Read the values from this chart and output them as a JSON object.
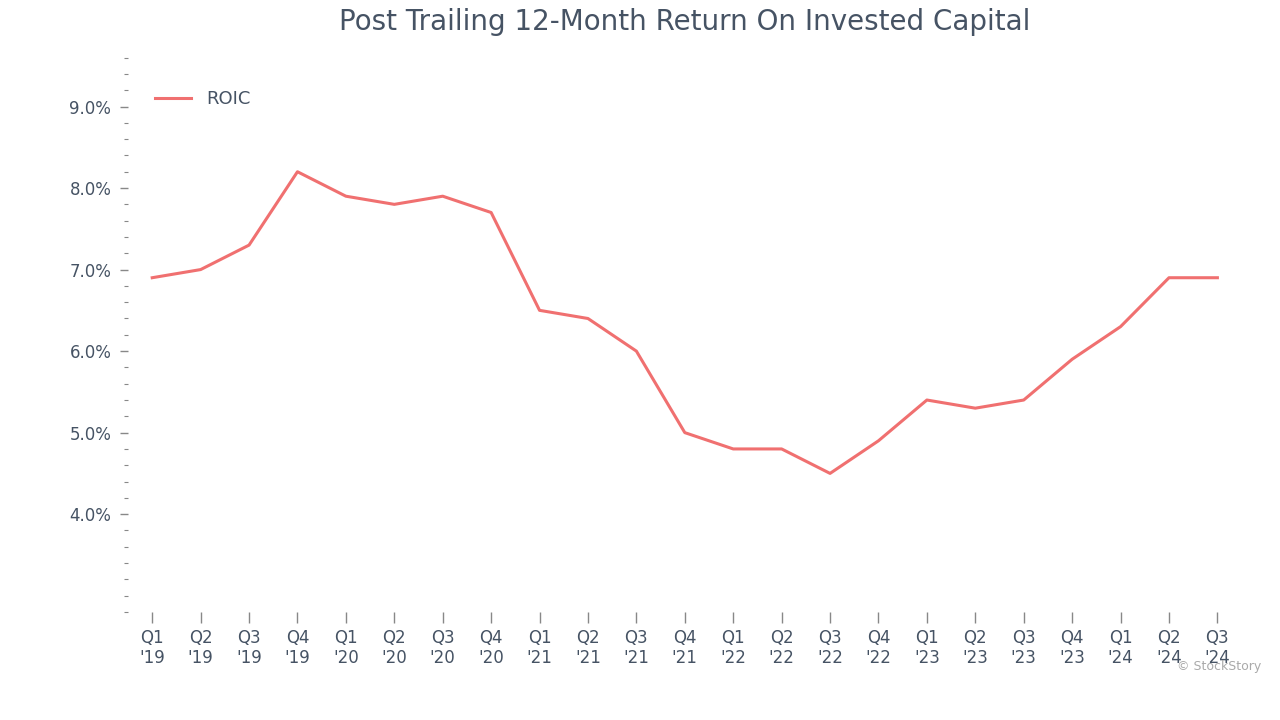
{
  "title": "Post Trailing 12-Month Return On Invested Capital",
  "line_color": "#F07070",
  "line_label": "ROIC",
  "background_color": "#FFFFFF",
  "text_color": "#465364",
  "watermark": "© StockStory",
  "x_labels": [
    "Q1\n'19",
    "Q2\n'19",
    "Q3\n'19",
    "Q4\n'19",
    "Q1\n'20",
    "Q2\n'20",
    "Q3\n'20",
    "Q4\n'20",
    "Q1\n'21",
    "Q2\n'21",
    "Q3\n'21",
    "Q4\n'21",
    "Q1\n'22",
    "Q2\n'22",
    "Q3\n'22",
    "Q4\n'22",
    "Q1\n'23",
    "Q2\n'23",
    "Q3\n'23",
    "Q4\n'23",
    "Q1\n'24",
    "Q2\n'24",
    "Q3\n'24"
  ],
  "y_values": [
    0.069,
    0.07,
    0.073,
    0.082,
    0.079,
    0.078,
    0.079,
    0.077,
    0.065,
    0.064,
    0.06,
    0.05,
    0.048,
    0.048,
    0.045,
    0.049,
    0.054,
    0.053,
    0.054,
    0.059,
    0.063,
    0.069,
    0.069
  ],
  "yticks": [
    0.04,
    0.05,
    0.06,
    0.07,
    0.08,
    0.09
  ],
  "ylim": [
    0.028,
    0.096
  ],
  "title_fontsize": 20,
  "tick_label_fontsize": 12,
  "legend_fontsize": 13,
  "watermark_fontsize": 9
}
